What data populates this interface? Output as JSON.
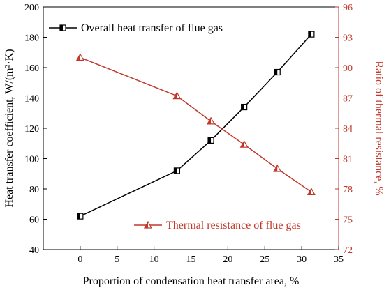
{
  "chart_data": {
    "type": "line",
    "xlabel": "Proportion of condensation heat transfer area, %",
    "ylabel": "Heat transfer coefficient, W/(m²·K)",
    "y2label": "Ratio of thermal resistance, %",
    "xlim": [
      -5,
      35
    ],
    "ylim": [
      40,
      200
    ],
    "y2lim": [
      72,
      96
    ],
    "xticks": [
      0,
      5,
      10,
      15,
      20,
      25,
      30,
      35
    ],
    "yticks": [
      40,
      60,
      80,
      100,
      120,
      140,
      160,
      180,
      200
    ],
    "y2ticks": [
      72,
      75,
      78,
      81,
      84,
      87,
      90,
      93,
      96
    ],
    "grid": false,
    "series": [
      {
        "name": "Overall heat transfer of flue gas",
        "axis": "left",
        "marker": "half-filled-square",
        "color": "#000000",
        "x": [
          0,
          13.1,
          17.7,
          22.2,
          26.7,
          31.3
        ],
        "y": [
          62,
          92,
          112,
          134,
          157,
          182
        ],
        "legend": "top-left"
      },
      {
        "name": "Thermal resistance of flue gas",
        "axis": "right",
        "marker": "half-filled-triangle",
        "color": "#c0392b",
        "x": [
          0,
          13.1,
          17.7,
          22.2,
          26.7,
          31.3
        ],
        "y": [
          91.0,
          87.2,
          84.7,
          82.4,
          80.0,
          77.7
        ],
        "legend": "bottom-right"
      }
    ]
  }
}
